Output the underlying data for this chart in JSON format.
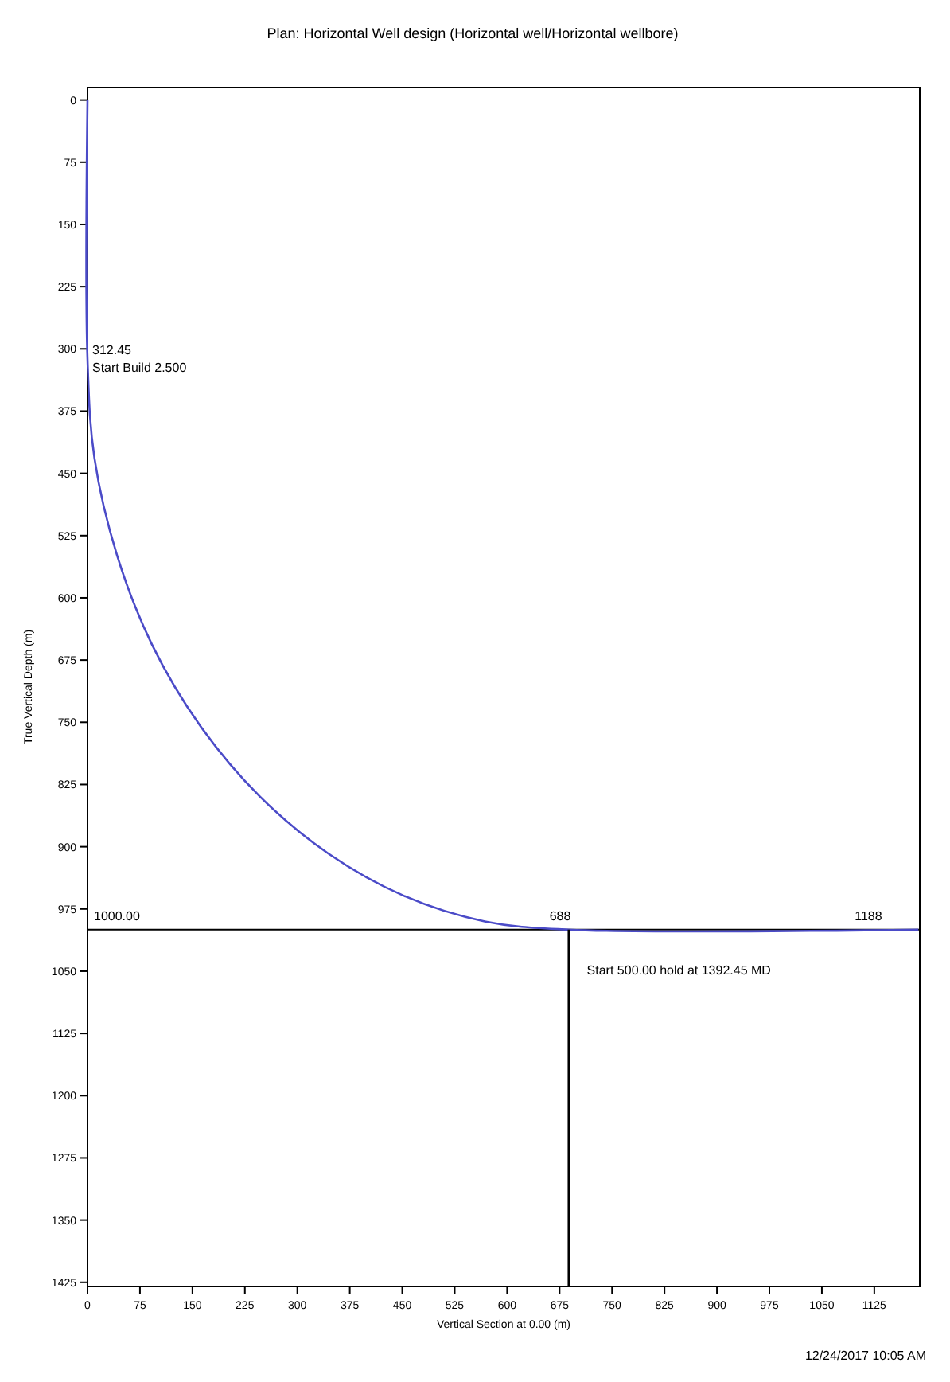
{
  "chart_data": {
    "type": "line",
    "title": "Plan: Horizontal Well design (Horizontal well/Horizontal wellbore)",
    "xlabel": "Vertical Section at 0.00 (m)",
    "ylabel": "True Vertical Depth (m)",
    "xlim": [
      0,
      1190
    ],
    "xticks": [
      0,
      75,
      150,
      225,
      300,
      375,
      450,
      525,
      600,
      675,
      750,
      825,
      900,
      975,
      1050,
      1125
    ],
    "ylim": [
      1430,
      -15
    ],
    "yticks": [
      0,
      75,
      150,
      225,
      300,
      375,
      450,
      525,
      600,
      675,
      750,
      825,
      900,
      975,
      1050,
      1125,
      1200,
      1275,
      1350,
      1425
    ],
    "grid": false,
    "series": [
      {
        "color": "#4b4bc8",
        "x": [
          0,
          0,
          10,
          42,
          92,
          161,
          246,
          344,
          452,
          568,
          688,
          1188
        ],
        "values": [
          0,
          312.45,
          432,
          548,
          656,
          754,
          839,
          908,
          959,
          990,
          1000,
          1000
        ]
      },
      {
        "color": "#000000",
        "x": [
          688,
          688
        ],
        "values": [
          1000,
          1430
        ]
      }
    ],
    "ref_lines": [
      {
        "axis": "y",
        "value": 1000,
        "label": "1000.00",
        "color": "#000000"
      }
    ],
    "annotations": [
      {
        "text": "312.45",
        "x": 0,
        "y": 312.45
      },
      {
        "text": "Start Build 2.500",
        "x": 0,
        "y": 312.45
      },
      {
        "text": "688",
        "x": 688,
        "y": 1000
      },
      {
        "text": "1188",
        "x": 1188,
        "y": 1000
      },
      "Start 500.00 hold at 1392.45 MD",
      "12/24/2017 10:05 AM"
    ]
  }
}
